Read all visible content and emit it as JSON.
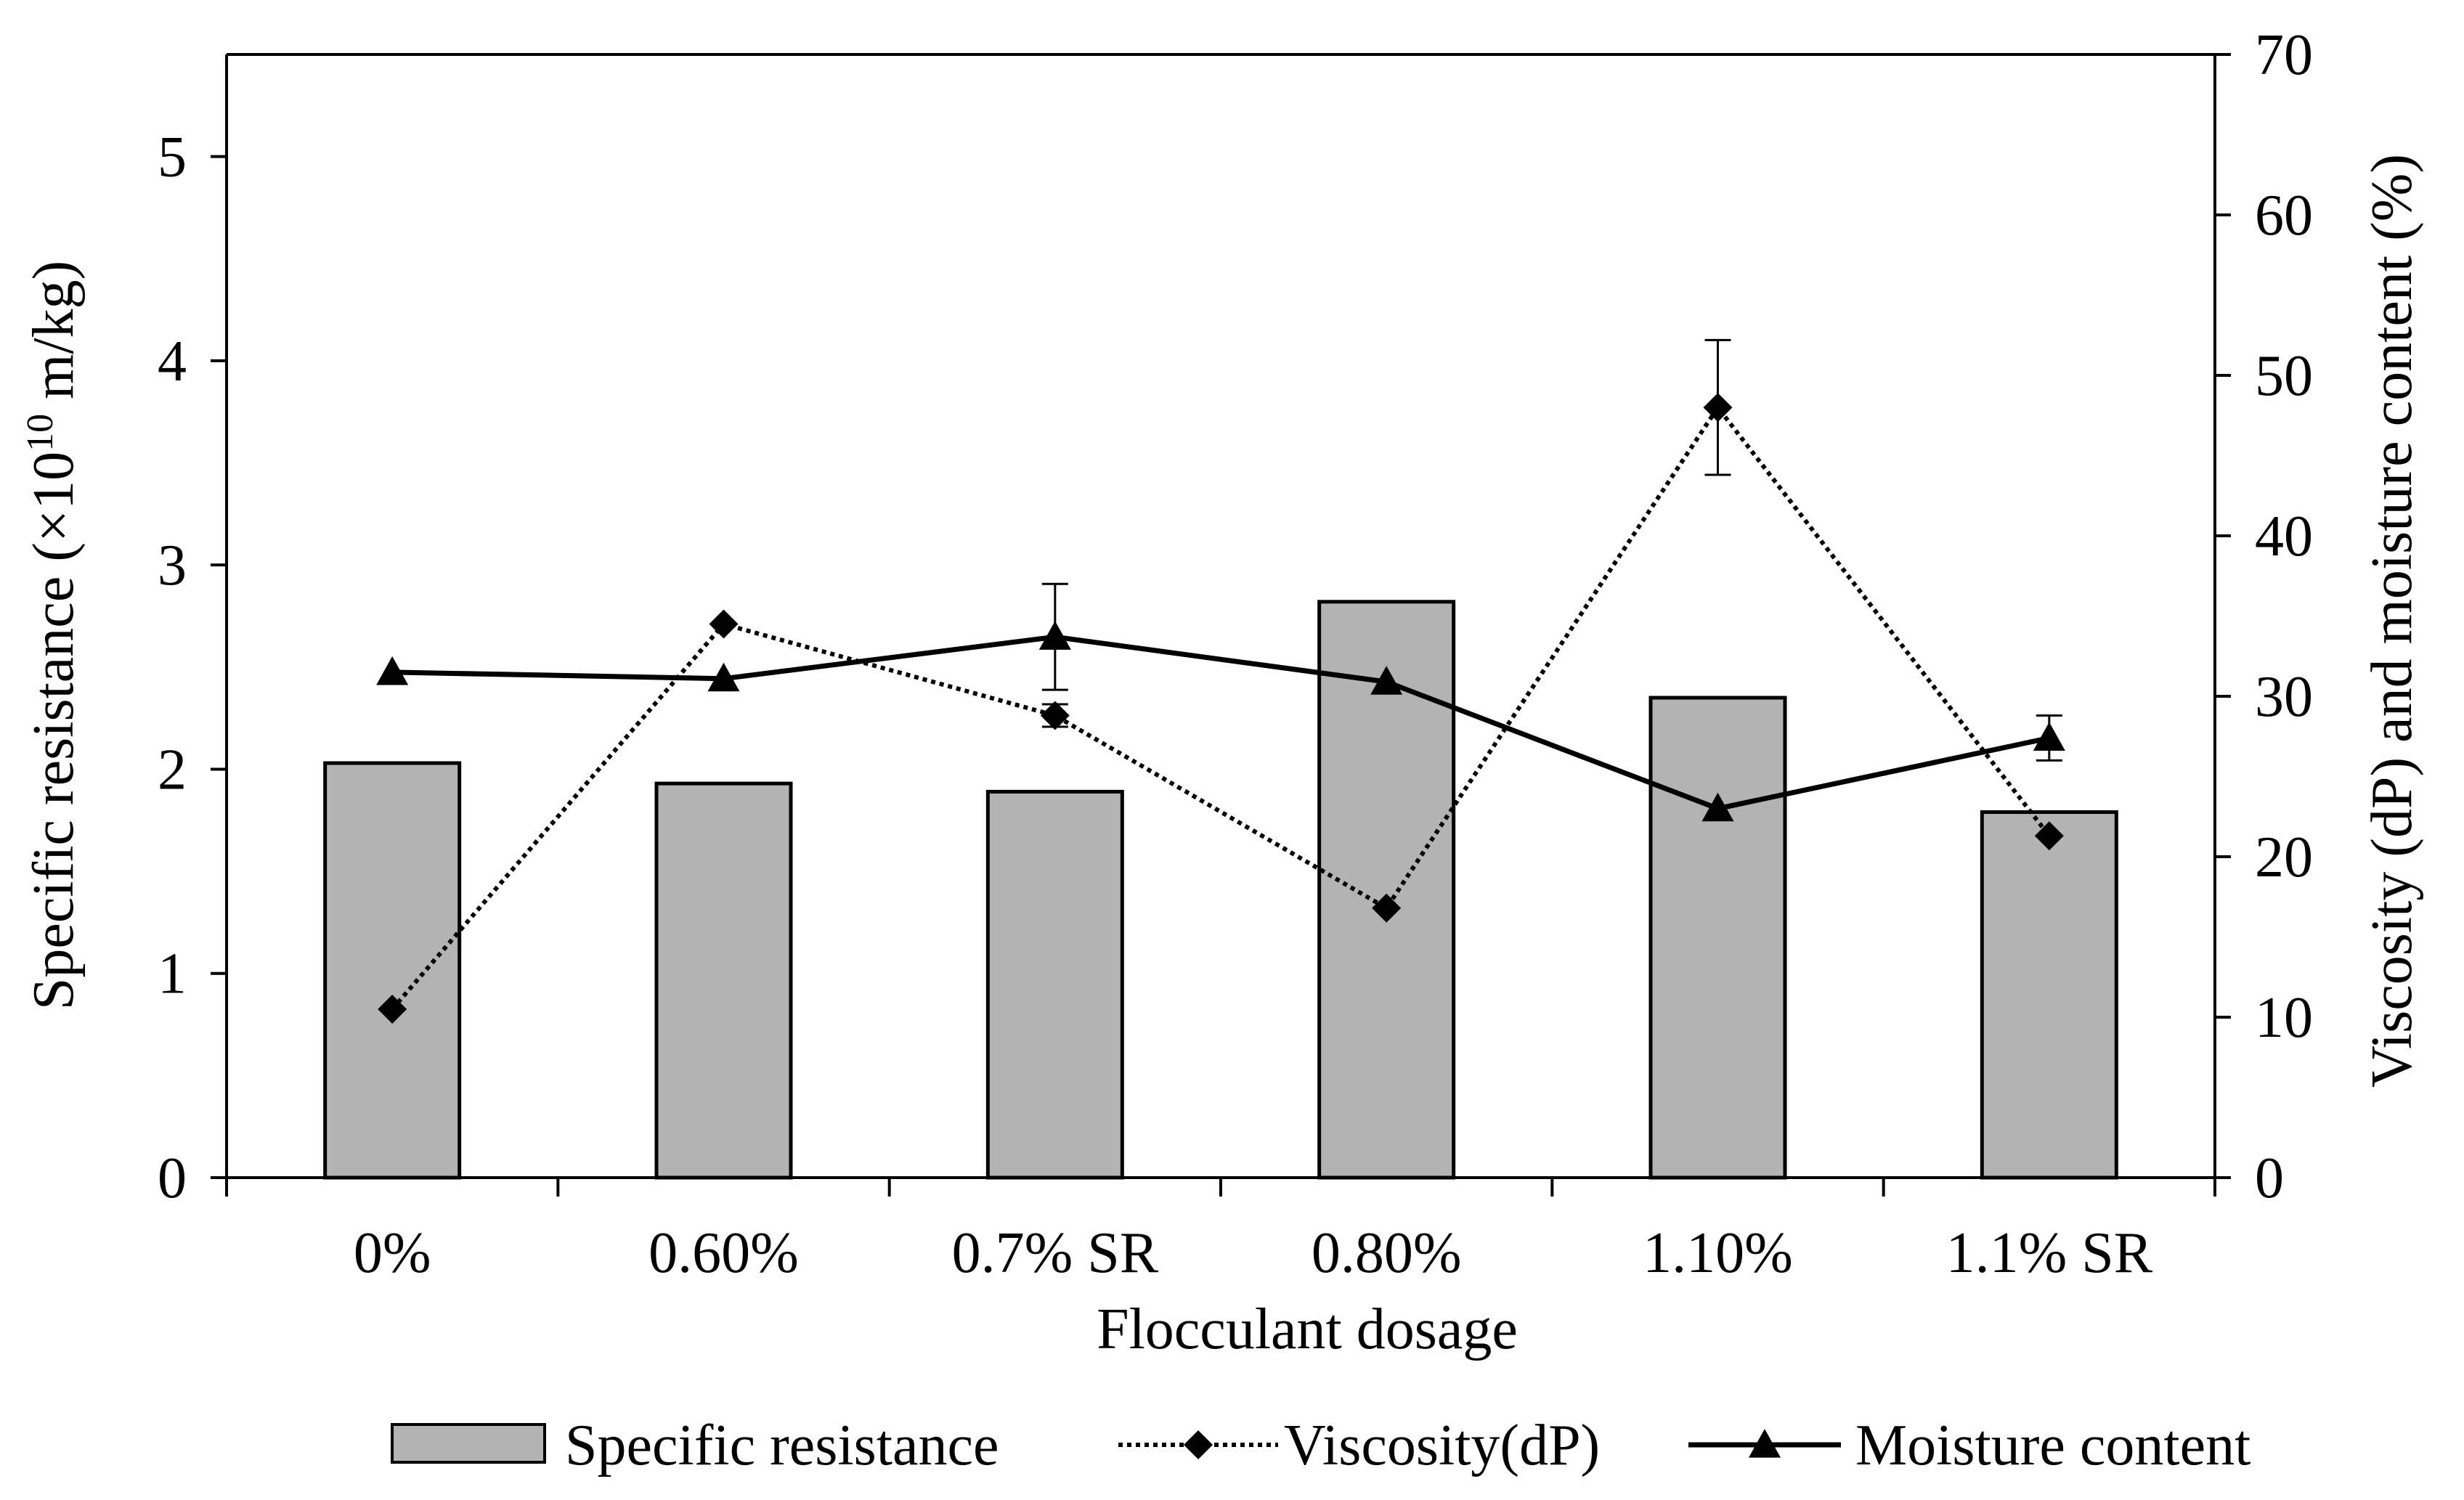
{
  "chart_data": {
    "type": "bar",
    "title": "",
    "xlabel": "Flocculant dosage",
    "ylabel_left": {
      "prefix": "Specific resistance (×10",
      "sup": "10",
      "suffix": " m/kg)"
    },
    "ylabel_right": "Viscosity (dP) and moisture content (%)",
    "categories": [
      "0%",
      "0.60%",
      "0.7% SR",
      "0.80%",
      "1.10%",
      "1.1% SR"
    ],
    "ylim_left": [
      0,
      5.5
    ],
    "yticks_left": [
      0,
      1,
      2,
      3,
      4,
      5
    ],
    "ylim_right": [
      0,
      70
    ],
    "yticks_right": [
      0,
      10,
      20,
      30,
      40,
      50,
      60,
      70
    ],
    "series": [
      {
        "name": "Specific resistance",
        "kind": "bar",
        "axis": "left",
        "color": "#b3b3b3",
        "values": [
          2.03,
          1.93,
          1.89,
          2.82,
          2.35,
          1.79
        ]
      },
      {
        "name": "Viscosity(dP)",
        "kind": "line",
        "style": "dotted",
        "marker": "diamond",
        "axis": "right",
        "values": [
          10.5,
          34.5,
          28.8,
          16.8,
          48.0,
          21.3
        ],
        "errors": [
          null,
          null,
          0.7,
          null,
          4.2,
          null
        ]
      },
      {
        "name": "Moisture content",
        "kind": "line",
        "style": "solid",
        "marker": "triangle",
        "axis": "right",
        "values": [
          31.5,
          31.1,
          33.7,
          30.9,
          23.0,
          27.4
        ],
        "errors": [
          null,
          null,
          3.3,
          null,
          null,
          1.4
        ]
      }
    ],
    "legend": {
      "position": "bottom",
      "items": [
        "Specific resistance",
        "Viscosity(dP)",
        "Moisture content"
      ]
    }
  }
}
